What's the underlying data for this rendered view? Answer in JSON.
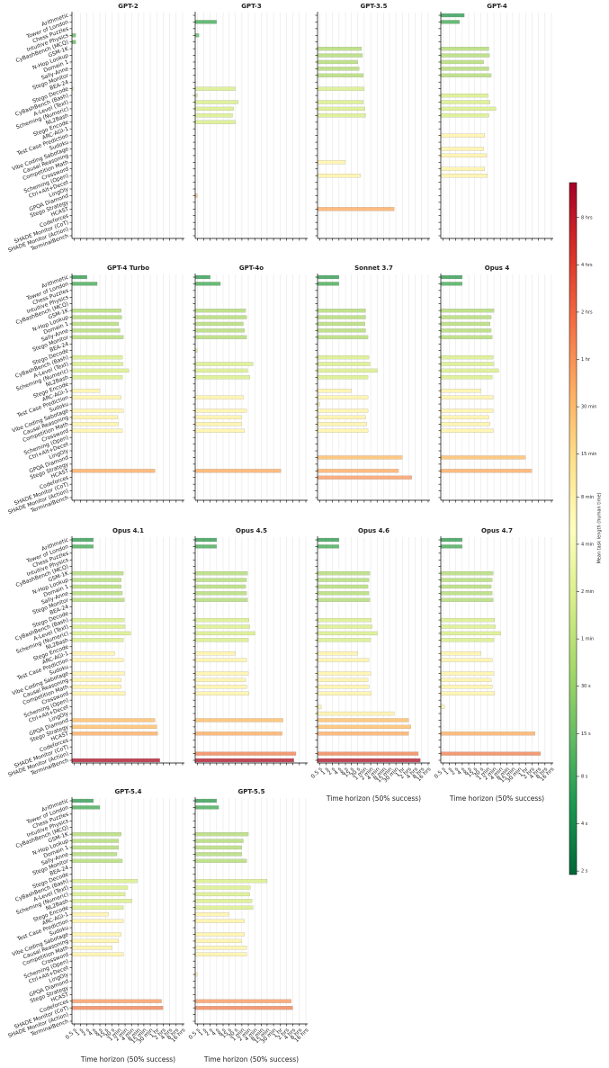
{
  "chart_data": {
    "type": "bar",
    "orientation": "horizontal",
    "log_x": true,
    "grid": true,
    "xlabel": "Time horizon (50% success)",
    "categories": [
      "Arithmetic",
      "Tower of London",
      "Chess Puzzles",
      "Intuitive Physics",
      "CyBashBench (MCQ)",
      "GSM-1K",
      "N-Hop Lookup",
      "Domain 1",
      "Sally-Anne",
      "Stego Monitor",
      "BEA-24",
      "Stego Decode",
      "CyBashBench (Bash)",
      "A-Level (Text)",
      "Scheming (Numeric)",
      "NL2Bash",
      "Stego Encode",
      "ARC-AGI-1",
      "Test Case Prediction",
      "Sudoku",
      "Vibe Coding Sabotage",
      "Causal Reasoning",
      "Competition Math",
      "Crossword",
      "Scheming (Open)",
      "Ctrl+Alt+Decet",
      "LingOly",
      "GPQA Diamond",
      "Stego Strategy",
      "HCAST",
      "Codeforces",
      "SHADE Monitor (CoT)",
      "SHADE Monitor (Action)",
      "TerminalBench"
    ],
    "category_colors": [
      "#3ca05a",
      "#4daf5e",
      "#4daf5e",
      "#66bd63",
      "#66bd63",
      "#b5dc7a",
      "#b5dc7a",
      "#b5dc7a",
      "#b5dc7a",
      "#b5dc7a",
      "#b5dc7a",
      "#d9ef8b",
      "#d9ef8b",
      "#d9ef8b",
      "#d9ef8b",
      "#d9ef8b",
      "#d9ef8b",
      "#fff3a8",
      "#fff3a8",
      "#fff3a8",
      "#fff3a8",
      "#fff3a8",
      "#fff3a8",
      "#fff3a8",
      "#fff3a8",
      "#fff3a8",
      "#fff3a8",
      "#fdbf6f",
      "#fdbf6f",
      "#fdb06a",
      "#f9a06a",
      "#f08a5d",
      "#f08a5d",
      "#b5263a"
    ],
    "xlim": [
      0.4,
      70000
    ],
    "xticks": [
      {
        "value": 0.5,
        "label": "0.5 s"
      },
      {
        "value": 1,
        "label": "1 s"
      },
      {
        "value": 2,
        "label": "2 s"
      },
      {
        "value": 4,
        "label": "4 s"
      },
      {
        "value": 8,
        "label": "8 s"
      },
      {
        "value": 15,
        "label": "15 s"
      },
      {
        "value": 30,
        "label": "30 s"
      },
      {
        "value": 60,
        "label": "1 min"
      },
      {
        "value": 120,
        "label": "2 min"
      },
      {
        "value": 240,
        "label": "4 min"
      },
      {
        "value": 480,
        "label": "8 min"
      },
      {
        "value": 900,
        "label": "15 min"
      },
      {
        "value": 1800,
        "label": "30 min"
      },
      {
        "value": 3600,
        "label": "1 hr"
      },
      {
        "value": 7200,
        "label": "2 hrs"
      },
      {
        "value": 14400,
        "label": "4 hrs"
      },
      {
        "value": 28800,
        "label": "8 hrs"
      },
      {
        "value": 57600,
        "label": "16 hrs"
      }
    ],
    "series": [
      {
        "name": "GPT-2",
        "values": [
          null,
          null,
          null,
          0.6,
          0.6,
          null,
          null,
          null,
          null,
          null,
          null,
          0.45,
          null,
          null,
          null,
          null,
          null,
          null,
          null,
          null,
          null,
          null,
          null,
          null,
          null,
          null,
          null,
          null,
          null,
          null,
          null,
          null,
          null,
          null
        ]
      },
      {
        "name": "GPT-3",
        "values": [
          null,
          4,
          null,
          0.6,
          null,
          null,
          null,
          null,
          null,
          null,
          null,
          30,
          0.5,
          40,
          25,
          22,
          30,
          null,
          null,
          null,
          null,
          null,
          null,
          null,
          null,
          null,
          null,
          0.5,
          null,
          null,
          null,
          null,
          null,
          null
        ]
      },
      {
        "name": "GPT-3.5",
        "values": [
          null,
          null,
          null,
          null,
          null,
          45,
          50,
          30,
          35,
          55,
          null,
          60,
          null,
          55,
          65,
          70,
          null,
          null,
          null,
          null,
          null,
          null,
          8,
          null,
          40,
          null,
          null,
          null,
          null,
          1500,
          null,
          null,
          null,
          null
        ]
      },
      {
        "name": "GPT-4",
        "values": [
          5,
          3,
          null,
          null,
          null,
          70,
          75,
          40,
          70,
          90,
          null,
          null,
          65,
          80,
          150,
          70,
          null,
          null,
          45,
          null,
          40,
          55,
          null,
          45,
          60,
          null,
          null,
          null,
          null,
          null,
          null,
          null,
          null,
          null
        ]
      },
      {
        "name": "GPT-4 Turbo",
        "values": [
          2,
          6,
          null,
          null,
          null,
          80,
          85,
          60,
          70,
          100,
          null,
          null,
          90,
          95,
          180,
          90,
          null,
          8,
          80,
          null,
          100,
          55,
          60,
          90,
          null,
          null,
          null,
          null,
          null,
          3000,
          null,
          null,
          null,
          null
        ]
      },
      {
        "name": "GPT-4o",
        "values": [
          2,
          6,
          null,
          null,
          null,
          90,
          100,
          70,
          80,
          100,
          null,
          0.5,
          null,
          200,
          110,
          140,
          null,
          null,
          70,
          null,
          100,
          60,
          60,
          80,
          null,
          null,
          null,
          null,
          null,
          4000,
          null,
          null,
          null,
          null
        ]
      },
      {
        "name": "Sonnet 3.7",
        "values": [
          4,
          4,
          null,
          null,
          null,
          70,
          70,
          65,
          70,
          90,
          null,
          null,
          100,
          110,
          250,
          90,
          null,
          15,
          90,
          0.5,
          90,
          70,
          80,
          90,
          null,
          null,
          null,
          3600,
          null,
          2400,
          10000,
          null,
          null,
          null
        ]
      },
      {
        "name": "Opus 4",
        "values": [
          4,
          4,
          null,
          null,
          null,
          120,
          90,
          80,
          90,
          100,
          null,
          null,
          110,
          120,
          200,
          100,
          null,
          30,
          110,
          null,
          110,
          70,
          80,
          110,
          null,
          null,
          null,
          3600,
          null,
          7000,
          null,
          null,
          null,
          null
        ]
      },
      {
        "name": "Opus 4.1",
        "values": [
          4,
          4,
          null,
          null,
          null,
          100,
          80,
          80,
          90,
          110,
          null,
          null,
          110,
          120,
          220,
          100,
          null,
          40,
          100,
          null,
          110,
          80,
          80,
          120,
          null,
          null,
          null,
          3000,
          3600,
          4000,
          null,
          null,
          null,
          5000
        ]
      },
      {
        "name": "Opus 4.5",
        "values": [
          4,
          4,
          null,
          null,
          null,
          110,
          100,
          90,
          100,
          110,
          null,
          null,
          130,
          140,
          250,
          120,
          null,
          30,
          100,
          null,
          120,
          90,
          100,
          130,
          null,
          null,
          null,
          5000,
          null,
          4500,
          null,
          null,
          20000,
          16000
        ]
      },
      {
        "name": "Opus 4.6",
        "values": [
          4,
          4,
          null,
          null,
          null,
          110,
          100,
          90,
          100,
          110,
          null,
          null,
          130,
          140,
          250,
          120,
          null,
          30,
          100,
          null,
          120,
          90,
          100,
          130,
          null,
          0.6,
          1500,
          7000,
          9000,
          7000,
          null,
          null,
          20000,
          25000
        ]
      },
      {
        "name": "Opus 4.7",
        "values": [
          4,
          4,
          null,
          null,
          null,
          110,
          100,
          90,
          100,
          110,
          null,
          null,
          130,
          140,
          250,
          120,
          null,
          30,
          100,
          null,
          120,
          90,
          100,
          130,
          null,
          0.6,
          null,
          null,
          null,
          10000,
          null,
          null,
          18000,
          null
        ]
      },
      {
        "name": "GPT-5.4",
        "values": [
          4,
          8,
          null,
          null,
          null,
          80,
          60,
          60,
          50,
          90,
          null,
          null,
          450,
          160,
          120,
          250,
          100,
          20,
          100,
          null,
          80,
          60,
          30,
          100,
          null,
          null,
          null,
          null,
          null,
          null,
          6000,
          7000,
          null,
          null
        ]
      },
      {
        "name": "GPT-5.5",
        "values": [
          4,
          5,
          null,
          null,
          null,
          120,
          70,
          60,
          60,
          100,
          null,
          null,
          900,
          150,
          140,
          180,
          200,
          15,
          80,
          null,
          80,
          60,
          100,
          100,
          null,
          null,
          0.5,
          null,
          null,
          null,
          12000,
          14000,
          null,
          null
        ]
      }
    ],
    "colorbar": {
      "label": "Mean task length (human time)",
      "lim": [
        1.9,
        48000
      ],
      "ticks": [
        {
          "value": 2,
          "label": "2 s"
        },
        {
          "value": 4,
          "label": "4 s"
        },
        {
          "value": 8,
          "label": "8 s"
        },
        {
          "value": 15,
          "label": "15 s"
        },
        {
          "value": 30,
          "label": "30 s"
        },
        {
          "value": 60,
          "label": "1 min"
        },
        {
          "value": 120,
          "label": "2 min"
        },
        {
          "value": 240,
          "label": "4 min"
        },
        {
          "value": 480,
          "label": "8 min"
        },
        {
          "value": 900,
          "label": "15 min"
        },
        {
          "value": 1800,
          "label": "30 min"
        },
        {
          "value": 3600,
          "label": "1 hr"
        },
        {
          "value": 7200,
          "label": "2 hrs"
        },
        {
          "value": 14400,
          "label": "4 hrs"
        },
        {
          "value": 28800,
          "label": "8 hrs"
        }
      ]
    }
  }
}
